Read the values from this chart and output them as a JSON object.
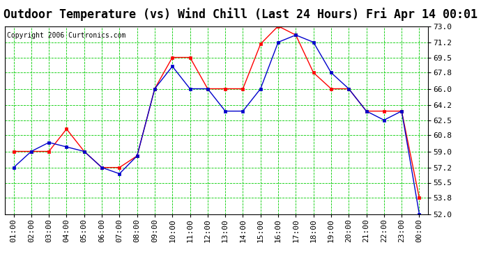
{
  "title": "Outdoor Temperature (vs) Wind Chill (Last 24 Hours) Fri Apr 14 00:01",
  "copyright": "Copyright 2006 Curtronics.com",
  "x_labels": [
    "01:00",
    "02:00",
    "03:00",
    "04:00",
    "05:00",
    "06:00",
    "07:00",
    "08:00",
    "09:00",
    "10:00",
    "11:00",
    "12:00",
    "13:00",
    "14:00",
    "15:00",
    "16:00",
    "17:00",
    "18:00",
    "19:00",
    "20:00",
    "21:00",
    "22:00",
    "23:00",
    "00:00"
  ],
  "temp_data": [
    59.0,
    59.0,
    59.0,
    61.5,
    59.0,
    57.2,
    57.2,
    58.5,
    66.0,
    69.5,
    69.5,
    66.0,
    66.0,
    66.0,
    71.0,
    73.0,
    72.0,
    67.8,
    66.0,
    66.0,
    63.5,
    63.5,
    63.5,
    53.8
  ],
  "windchill_data": [
    57.2,
    59.0,
    60.0,
    59.5,
    59.0,
    57.2,
    56.5,
    58.5,
    66.0,
    68.5,
    66.0,
    66.0,
    63.5,
    63.5,
    66.0,
    71.2,
    72.0,
    71.2,
    67.8,
    66.0,
    63.5,
    62.5,
    63.5,
    52.0
  ],
  "temp_color": "#ff0000",
  "windchill_color": "#0000cc",
  "grid_color": "#00cc00",
  "bg_color": "#ffffff",
  "ylim_min": 52.0,
  "ylim_max": 73.0,
  "yticks": [
    52.0,
    53.8,
    55.5,
    57.2,
    59.0,
    60.8,
    62.5,
    64.2,
    66.0,
    67.8,
    69.5,
    71.2,
    73.0
  ],
  "title_fontsize": 12,
  "copyright_fontsize": 7,
  "tick_fontsize": 8,
  "marker_size": 3
}
